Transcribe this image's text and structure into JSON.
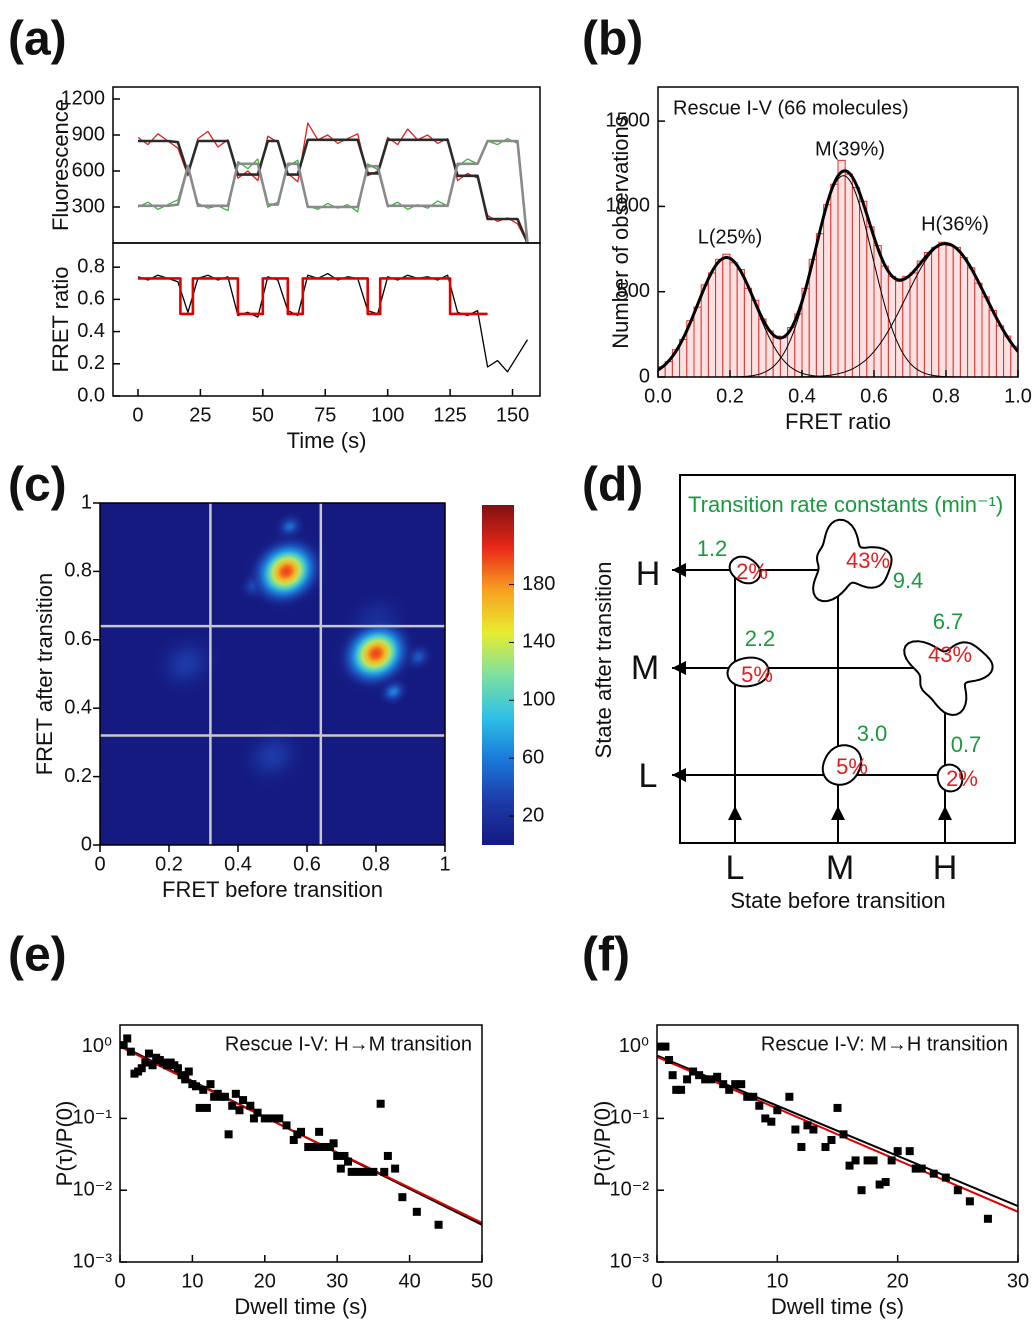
{
  "panel_labels": [
    "(a)",
    "(b)",
    "(c)",
    "(d)",
    "(e)",
    "(f)"
  ],
  "chart_data": [
    {
      "type": "line",
      "ylabel": "Fluorescence",
      "x": [
        0,
        4,
        8,
        12,
        16,
        20,
        24,
        28,
        32,
        36,
        40,
        44,
        48,
        52,
        56,
        60,
        64,
        68,
        72,
        76,
        80,
        84,
        88,
        92,
        96,
        100,
        104,
        108,
        112,
        116,
        120,
        124,
        128,
        132,
        136,
        140,
        144,
        148,
        152,
        156
      ],
      "series": [
        {
          "color": "#3cb43c",
          "values": [
            300,
            340,
            280,
            320,
            360,
            650,
            330,
            290,
            310,
            270,
            680,
            620,
            700,
            300,
            340,
            640,
            690,
            310,
            280,
            330,
            290,
            320,
            260,
            660,
            610,
            300,
            340,
            280,
            320,
            290,
            350,
            310,
            640,
            700,
            660,
            850,
            820,
            870,
            830,
            0
          ]
        },
        {
          "color": "#e02020",
          "values": [
            880,
            820,
            910,
            850,
            790,
            560,
            870,
            930,
            800,
            860,
            540,
            600,
            520,
            890,
            840,
            580,
            510,
            1000,
            860,
            900,
            830,
            870,
            910,
            560,
            600,
            880,
            820,
            950,
            860,
            900,
            830,
            870,
            520,
            580,
            540,
            230,
            180,
            210,
            160,
            0
          ]
        },
        {
          "color": "#2a2a2a",
          "values": [
            850,
            850,
            850,
            850,
            840,
            580,
            850,
            850,
            850,
            850,
            570,
            570,
            570,
            850,
            850,
            570,
            570,
            860,
            860,
            860,
            860,
            860,
            860,
            580,
            580,
            860,
            860,
            860,
            860,
            860,
            860,
            860,
            560,
            560,
            560,
            200,
            200,
            200,
            200,
            0
          ]
        },
        {
          "color": "#8a8a8a",
          "values": [
            310,
            310,
            310,
            310,
            320,
            640,
            310,
            310,
            310,
            310,
            660,
            660,
            660,
            320,
            320,
            660,
            660,
            300,
            300,
            300,
            300,
            300,
            300,
            640,
            640,
            310,
            310,
            310,
            310,
            310,
            310,
            310,
            660,
            660,
            660,
            850,
            850,
            850,
            850,
            0
          ]
        }
      ],
      "xlim": [
        -10,
        161
      ],
      "ylim": [
        0,
        1300
      ],
      "yticks": [
        300,
        600,
        900,
        1200
      ]
    },
    {
      "type": "line",
      "ylabel": "FRET ratio",
      "xlabel": "Time (s)",
      "x": [
        0,
        4,
        8,
        12,
        16,
        20,
        24,
        28,
        32,
        36,
        40,
        44,
        48,
        52,
        56,
        60,
        64,
        68,
        72,
        76,
        80,
        84,
        88,
        92,
        96,
        100,
        104,
        108,
        112,
        116,
        120,
        124,
        128,
        132,
        136,
        140,
        144,
        148,
        152,
        156
      ],
      "series": [
        {
          "color": "#000000",
          "values": [
            0.74,
            0.72,
            0.75,
            0.73,
            0.71,
            0.52,
            0.73,
            0.75,
            0.72,
            0.74,
            0.5,
            0.52,
            0.49,
            0.74,
            0.72,
            0.53,
            0.5,
            0.75,
            0.73,
            0.76,
            0.72,
            0.74,
            0.73,
            0.53,
            0.51,
            0.74,
            0.72,
            0.75,
            0.73,
            0.74,
            0.72,
            0.75,
            0.52,
            0.5,
            0.53,
            0.18,
            0.22,
            0.15,
            0.25,
            0.35
          ]
        }
      ],
      "fit": {
        "color": "#e00000",
        "x": [
          0,
          17,
          17,
          22,
          22,
          40,
          40,
          50,
          50,
          60,
          60,
          66,
          66,
          92,
          92,
          97,
          97,
          125,
          125,
          140
        ],
        "values": [
          0.73,
          0.73,
          0.51,
          0.51,
          0.73,
          0.73,
          0.51,
          0.51,
          0.73,
          0.73,
          0.51,
          0.51,
          0.73,
          0.73,
          0.51,
          0.51,
          0.73,
          0.73,
          0.51,
          0.51
        ]
      },
      "xlim": [
        -10,
        161
      ],
      "ylim": [
        0,
        0.95
      ],
      "xticks": [
        0,
        25,
        50,
        75,
        100,
        125,
        150
      ],
      "yticks": [
        {
          "value": 0,
          "label": "0.0"
        },
        0.2,
        0.4,
        0.6,
        0.8
      ]
    },
    {
      "type": "histogram",
      "title": "Rescue I-V (66 molecules)",
      "annotations": [
        "L(25%)",
        "M(39%)",
        "H(36%)"
      ],
      "xlabel": "FRET ratio",
      "ylabel": "Number of observations",
      "bins": [
        0,
        0.02,
        0.04,
        0.06,
        0.08,
        0.1,
        0.12,
        0.14,
        0.16,
        0.18,
        0.2,
        0.22,
        0.24,
        0.26,
        0.28,
        0.3,
        0.32,
        0.34,
        0.36,
        0.38,
        0.4,
        0.42,
        0.44,
        0.46,
        0.48,
        0.5,
        0.52,
        0.54,
        0.56,
        0.58,
        0.6,
        0.62,
        0.64,
        0.66,
        0.68,
        0.7,
        0.72,
        0.74,
        0.76,
        0.78,
        0.8,
        0.82,
        0.84,
        0.86,
        0.88,
        0.9,
        0.92,
        0.94,
        0.96,
        0.98,
        1
      ],
      "counts": [
        60,
        90,
        160,
        220,
        330,
        410,
        540,
        610,
        690,
        720,
        670,
        630,
        520,
        450,
        340,
        270,
        240,
        230,
        290,
        370,
        520,
        690,
        840,
        1010,
        1130,
        1270,
        1190,
        1110,
        1030,
        880,
        770,
        650,
        590,
        560,
        590,
        610,
        680,
        730,
        760,
        790,
        770,
        760,
        700,
        640,
        550,
        470,
        390,
        300,
        240,
        180
      ],
      "color": "#e03030",
      "fill": "#fbe2e2",
      "fit_color": "#000000",
      "fits": [
        {
          "center": 0.19,
          "amplitude": 700,
          "sigma": 0.08
        },
        {
          "center": 0.515,
          "amplitude": 1180,
          "sigma": 0.08
        },
        {
          "center": 0.8,
          "amplitude": 780,
          "sigma": 0.11
        }
      ],
      "xlim": [
        0,
        1
      ],
      "ylim": [
        0,
        1700
      ],
      "xticks": [
        {
          "value": 0,
          "label": "0.0"
        },
        0.2,
        0.4,
        0.6,
        0.8,
        {
          "value": 1,
          "label": "1.0"
        }
      ],
      "yticks": [
        0,
        500,
        1000,
        1500
      ]
    },
    {
      "type": "heatmap",
      "xlabel": "FRET before transition",
      "ylabel": "FRET after transition",
      "xlim": [
        0,
        1
      ],
      "ylim": [
        0,
        1
      ],
      "xticks": [
        0,
        0.2,
        0.4,
        0.6,
        0.8,
        1
      ],
      "yticks": [
        0,
        0.2,
        0.4,
        0.6,
        0.8,
        1
      ],
      "dividers": [
        0.32,
        0.64
      ],
      "divider_color": "#c8c8c8",
      "peaks": [
        {
          "x": 0.25,
          "y": 0.53,
          "height": 30,
          "width": 0.035
        },
        {
          "x": 0.5,
          "y": 0.26,
          "height": 30,
          "width": 0.035
        },
        {
          "x": 0.8,
          "y": 0.65,
          "height": 25,
          "width": 0.035
        },
        {
          "x": 0.45,
          "y": 0.76,
          "height": 60,
          "width": 0.016
        },
        {
          "x": 0.55,
          "y": 0.93,
          "height": 55,
          "width": 0.016
        },
        {
          "x": 0.92,
          "y": 0.55,
          "height": 50,
          "width": 0.016
        },
        {
          "x": 0.85,
          "y": 0.45,
          "height": 65,
          "width": 0.016
        },
        {
          "x": 0.54,
          "y": 0.8,
          "height": 200,
          "width": 0.04
        },
        {
          "x": 0.8,
          "y": 0.56,
          "height": 200,
          "width": 0.04
        }
      ],
      "colormap": [
        "#141a80",
        "#1d3aa8",
        "#1a78d8",
        "#2ec0e8",
        "#7ee0a0",
        "#e8ec30",
        "#f8a020",
        "#e82818",
        "#801010"
      ],
      "clim": [
        0,
        235
      ],
      "cticks": [
        20,
        60,
        100,
        140,
        180
      ]
    },
    {
      "type": "scatter",
      "title": "Rescue I-V: H→M transition",
      "xlabel": "Dwell time (s)",
      "ylabel": "P(τ)/P(0)",
      "log_y": true,
      "x": [
        0.5,
        1,
        1.5,
        2,
        2.5,
        3,
        3.5,
        4,
        4.5,
        5,
        5.5,
        6,
        6.5,
        7,
        7.5,
        8,
        8.5,
        9,
        9.5,
        10,
        10.5,
        11,
        11.5,
        12,
        12.5,
        13,
        13.5,
        14,
        14.5,
        15,
        15.5,
        16,
        16.5,
        17,
        18,
        18.5,
        19,
        20,
        21,
        22,
        23,
        24,
        24.5,
        25,
        26,
        27,
        27.5,
        28,
        29,
        29.5,
        30,
        30.5,
        31,
        31.5,
        32,
        33,
        34,
        35,
        36,
        36.5,
        37,
        38,
        39,
        41,
        44
      ],
      "values": [
        1.05,
        1.3,
        0.85,
        0.42,
        0.45,
        0.5,
        0.6,
        0.8,
        0.55,
        0.7,
        0.65,
        0.6,
        0.55,
        0.6,
        0.55,
        0.5,
        0.4,
        0.35,
        0.45,
        0.3,
        0.28,
        0.14,
        0.25,
        0.14,
        0.3,
        0.2,
        0.22,
        0.2,
        0.2,
        0.06,
        0.15,
        0.22,
        0.13,
        0.18,
        0.15,
        0.1,
        0.12,
        0.1,
        0.1,
        0.1,
        0.08,
        0.05,
        0.06,
        0.065,
        0.04,
        0.04,
        0.065,
        0.04,
        0.04,
        0.045,
        0.03,
        0.02,
        0.03,
        0.025,
        0.018,
        0.018,
        0.018,
        0.018,
        0.16,
        0.018,
        0.03,
        0.02,
        0.008,
        0.005,
        0.0033
      ],
      "color": "#000000",
      "fits": [
        {
          "color": "#000000",
          "x": [
            0,
            50
          ],
          "values": [
            1.05,
            0.0033
          ]
        },
        {
          "color": "#e00000",
          "x": [
            0,
            50
          ],
          "values": [
            1.0,
            0.0035
          ]
        }
      ],
      "xlim": [
        0,
        50
      ],
      "ylim": [
        0.001,
        2
      ],
      "xticks": [
        0,
        10,
        20,
        30,
        40,
        50
      ],
      "yticks": [
        {
          "value": 0.001,
          "label": "10⁻³"
        },
        {
          "value": 0.01,
          "label": "10⁻²"
        },
        {
          "value": 0.1,
          "label": "10⁻¹"
        },
        {
          "value": 1,
          "label": "10⁰"
        }
      ]
    },
    {
      "type": "scatter",
      "title": "Rescue I-V: M→H transition",
      "xlabel": "Dwell time (s)",
      "ylabel": "P(τ)/P(0)",
      "log_y": true,
      "x": [
        0.3,
        0.7,
        1,
        1.3,
        1.6,
        2,
        2.5,
        3,
        3.5,
        4,
        4.5,
        5,
        5.5,
        6,
        6.5,
        7,
        7.5,
        8,
        8.5,
        9,
        9.5,
        10,
        11,
        11.5,
        12,
        12.5,
        13,
        14,
        14.5,
        15,
        15.5,
        16,
        16.5,
        17,
        17.5,
        18,
        18.5,
        19,
        19.5,
        20,
        21,
        21.5,
        22,
        23,
        24,
        25,
        26,
        27.5
      ],
      "values": [
        1.0,
        1.0,
        0.65,
        0.4,
        0.25,
        0.25,
        0.35,
        0.45,
        0.4,
        0.35,
        0.35,
        0.38,
        0.3,
        0.25,
        0.3,
        0.3,
        0.2,
        0.2,
        0.15,
        0.1,
        0.09,
        0.13,
        0.2,
        0.07,
        0.04,
        0.08,
        0.07,
        0.04,
        0.05,
        0.14,
        0.06,
        0.022,
        0.026,
        0.01,
        0.026,
        0.026,
        0.012,
        0.013,
        0.026,
        0.035,
        0.035,
        0.02,
        0.02,
        0.017,
        0.015,
        0.01,
        0.007,
        0.004
      ],
      "color": "#000000",
      "fits": [
        {
          "color": "#000000",
          "x": [
            0,
            30
          ],
          "values": [
            0.75,
            0.006
          ]
        },
        {
          "color": "#e00000",
          "x": [
            0,
            30
          ],
          "values": [
            0.72,
            0.005
          ]
        }
      ],
      "xlim": [
        0,
        30
      ],
      "ylim": [
        0.001,
        2
      ],
      "xticks": [
        0,
        10,
        20,
        30
      ],
      "yticks": [
        {
          "value": 0.001,
          "label": "10⁻³"
        },
        {
          "value": 0.01,
          "label": "10⁻²"
        },
        {
          "value": 0.1,
          "label": "10⁻¹"
        },
        {
          "value": 1,
          "label": "10⁰"
        }
      ]
    }
  ],
  "diagram": {
    "title": "Transition rate constants (min⁻¹)",
    "xlabel": "State before transition",
    "ylabel": "State after transition",
    "states": [
      "L",
      "M",
      "H"
    ],
    "transitions": [
      {
        "rate": "1.2",
        "fraction": "2%"
      },
      {
        "rate": "9.4",
        "fraction": "43%"
      },
      {
        "rate": "2.2",
        "fraction": "5%"
      },
      {
        "rate": "6.7",
        "fraction": "43%"
      },
      {
        "rate": "3.0",
        "fraction": "5%"
      },
      {
        "rate": "0.7",
        "fraction": "2%"
      }
    ]
  }
}
